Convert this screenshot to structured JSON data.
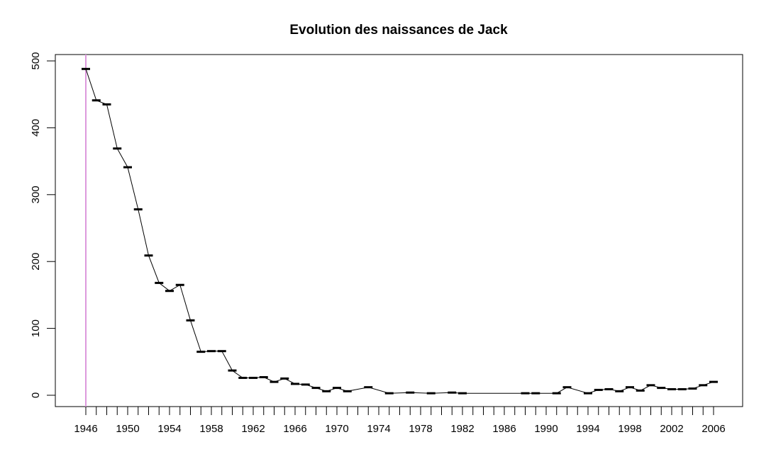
{
  "chart_data": {
    "type": "line",
    "title": "Evolution des naissances de Jack",
    "xlabel": "",
    "ylabel": "",
    "x": [
      1946,
      1947,
      1948,
      1949,
      1950,
      1951,
      1952,
      1953,
      1954,
      1955,
      1956,
      1957,
      1958,
      1959,
      1960,
      1961,
      1962,
      1963,
      1964,
      1965,
      1966,
      1967,
      1968,
      1969,
      1970,
      1971,
      1973,
      1975,
      1977,
      1979,
      1981,
      1982,
      1988,
      1989,
      1991,
      1992,
      1994,
      1995,
      1996,
      1997,
      1998,
      1999,
      2000,
      2001,
      2002,
      2003,
      2004,
      2005,
      2006
    ],
    "values": [
      488,
      441,
      435,
      369,
      341,
      278,
      209,
      168,
      156,
      165,
      112,
      65,
      66,
      66,
      37,
      26,
      26,
      27,
      20,
      25,
      17,
      16,
      11,
      6,
      11,
      6,
      12,
      3,
      4,
      3,
      4,
      3,
      3,
      3,
      3,
      12,
      3,
      8,
      9,
      6,
      12,
      7,
      15,
      11,
      9,
      9,
      10,
      15,
      20
    ],
    "xlim": [
      1946,
      2006
    ],
    "ylim": [
      0,
      500
    ],
    "x_ticks_labeled": [
      1946,
      1950,
      1954,
      1958,
      1962,
      1966,
      1970,
      1974,
      1978,
      1982,
      1986,
      1990,
      1994,
      1998,
      2002,
      2006
    ],
    "y_ticks": [
      0,
      100,
      200,
      300,
      400,
      500
    ],
    "grid": false,
    "marker": "horizontal-dash",
    "line_color": "#000000",
    "vline_x": 1946,
    "vline_color": "#dd99dd"
  }
}
